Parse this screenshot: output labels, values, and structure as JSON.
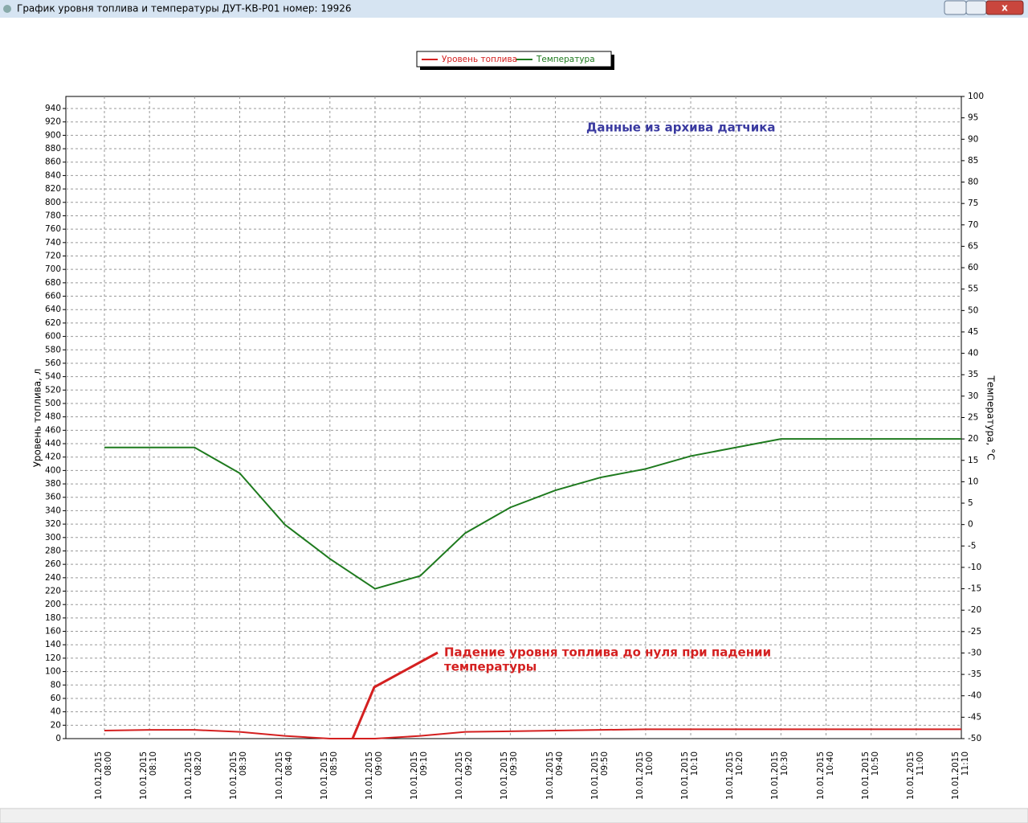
{
  "window": {
    "title": "График уровня топлива и температуры ДУТ-КВ-Р01 номер: 19926"
  },
  "chart_data": {
    "type": "line",
    "categories": [
      "10.01.2015 08:00",
      "10.01.2015 08:10",
      "10.01.2015 08:20",
      "10.01.2015 08:30",
      "10.01.2015 08:40",
      "10.01.2015 08:50",
      "10.01.2015 09:00",
      "10.01.2015 09:10",
      "10.01.2015 09:20",
      "10.01.2015 09:30",
      "10.01.2015 09:40",
      "10.01.2015 09:50",
      "10.01.2015 10:00",
      "10.01.2015 10:10",
      "10.01.2015 10:20",
      "10.01.2015 10:30",
      "10.01.2015 10:40",
      "10.01.2015 10:50",
      "10.01.2015 11:00",
      "10.01.2015 11:10"
    ],
    "series": [
      {
        "name": "Уровень топлива",
        "color": "#d42020",
        "values": [
          12,
          13,
          13,
          10,
          4,
          0,
          0,
          4,
          10,
          11,
          12,
          13,
          14,
          14,
          14,
          14,
          14,
          14,
          14,
          14
        ]
      },
      {
        "name": "Температура",
        "color": "#1e7a1e",
        "axis": "y2",
        "values": [
          18,
          18,
          18,
          12,
          0,
          -8,
          -15,
          -12,
          -2,
          4,
          8,
          11,
          13,
          16,
          18,
          20,
          20,
          20,
          20,
          20
        ]
      }
    ],
    "y_label": "Уровень топлива, л",
    "y2_label": "Температура, °C",
    "ylim": [
      0,
      958
    ],
    "yticks": [
      0,
      20,
      40,
      60,
      80,
      100,
      120,
      140,
      160,
      180,
      200,
      220,
      240,
      260,
      280,
      300,
      320,
      340,
      360,
      380,
      400,
      420,
      440,
      460,
      480,
      500,
      520,
      540,
      560,
      580,
      600,
      620,
      640,
      660,
      680,
      700,
      720,
      740,
      760,
      780,
      800,
      820,
      840,
      860,
      880,
      900,
      920,
      940
    ],
    "y2lim": [
      -50,
      100
    ],
    "y2ticks": [
      -50,
      -45,
      -40,
      -35,
      -30,
      -25,
      -20,
      -15,
      -10,
      -5,
      0,
      5,
      10,
      15,
      20,
      25,
      30,
      35,
      40,
      45,
      50,
      55,
      60,
      65,
      70,
      75,
      80,
      85,
      90,
      95,
      100
    ],
    "grid": true,
    "annotations": [
      "Данные из архива датчика",
      [
        "Падение уровня топлива до нуля при падении",
        "температуры"
      ]
    ]
  }
}
